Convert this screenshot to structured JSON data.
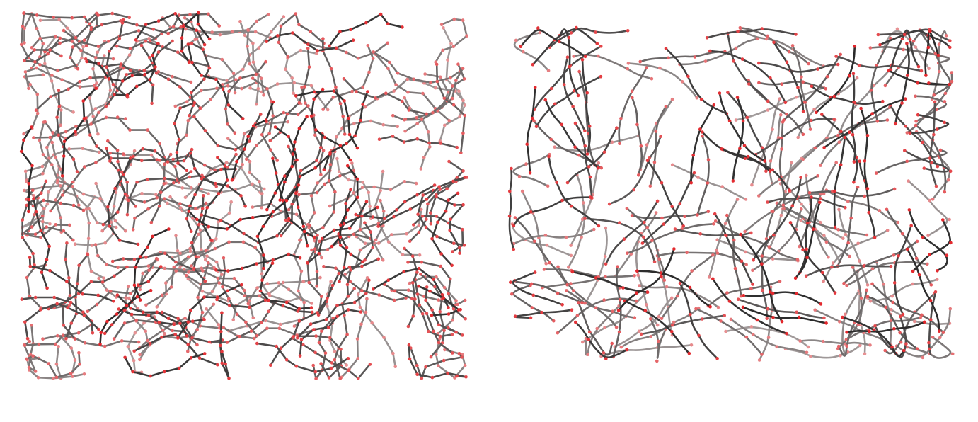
{
  "figure": {
    "panels": [
      {
        "id": "left",
        "description_key": "polymer-network-segmented",
        "chains": 230,
        "beads_per_chain": 7,
        "style": "angular"
      },
      {
        "id": "right",
        "description_key": "polymer-network-smooth",
        "chains": 200,
        "beads_per_chain": 7,
        "style": "curved"
      }
    ],
    "colors": {
      "background": "#ffffff",
      "chain_near": "#2b2b2b",
      "chain_far": "#b8b0b0",
      "bead": "#e3262b",
      "bead_far": "#e7a0a2"
    }
  }
}
